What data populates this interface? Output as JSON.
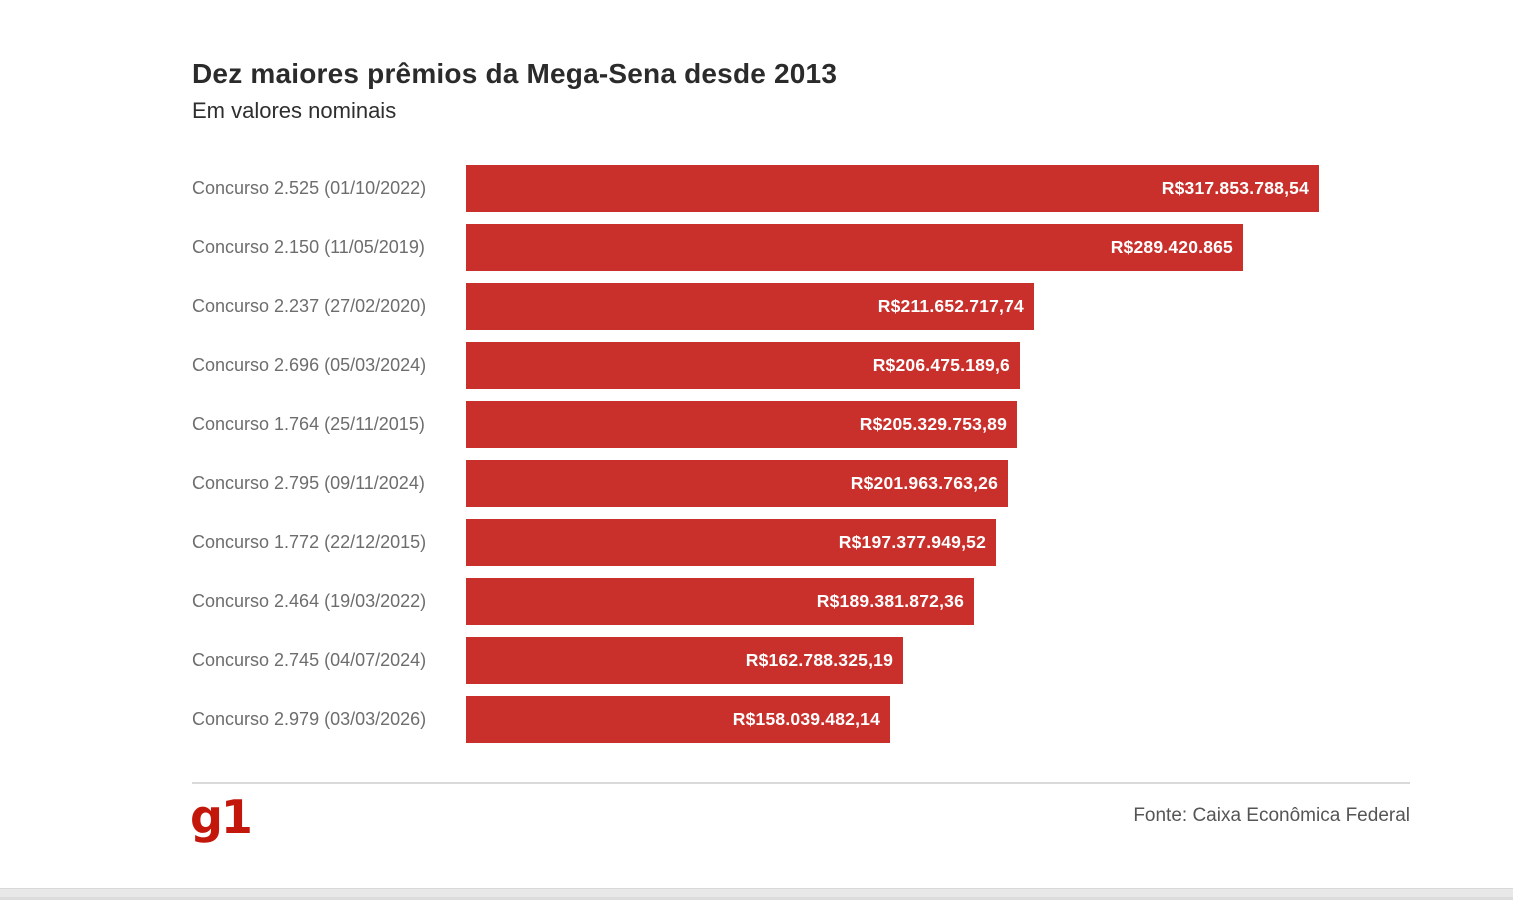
{
  "header": {
    "title": "Dez maiores prêmios da Mega-Sena desde 2013",
    "subtitle": "Em valores nominais"
  },
  "chart_data": {
    "type": "bar",
    "orientation": "horizontal",
    "title": "Dez maiores prêmios da Mega-Sena desde 2013",
    "subtitle": "Em valores nominais",
    "currency": "R$",
    "xlim": [
      0,
      317853788.54
    ],
    "grid": false,
    "legend": false,
    "bar_color": "#c9302c",
    "category_label_color": "#6d6d6d",
    "value_label_color": "#ffffff",
    "categories": [
      "Concurso 2.525 (01/10/2022)",
      "Concurso 2.150 (11/05/2019)",
      "Concurso 2.237 (27/02/2020)",
      "Concurso 2.696 (05/03/2024)",
      "Concurso 1.764 (25/11/2015)",
      "Concurso 2.795 (09/11/2024)",
      "Concurso 1.772 (22/12/2015)",
      "Concurso 2.464 (19/03/2022)",
      "Concurso 2.745 (04/07/2024)",
      "Concurso 2.979 (03/03/2026)"
    ],
    "values": [
      317853788.54,
      289420865,
      211652717.74,
      206475189.6,
      205329753.89,
      201963763.26,
      197377949.52,
      189381872.36,
      162788325.19,
      158039482.14
    ],
    "value_labels": [
      "R$317.853.788,54",
      "R$289.420.865",
      "R$211.652.717,74",
      "R$206.475.189,6",
      "R$205.329.753,89",
      "R$201.963.763,26",
      "R$197.377.949,52",
      "R$189.381.872,36",
      "R$162.788.325,19",
      "R$158.039.482,14"
    ]
  },
  "footer": {
    "logo_text": "g1",
    "logo_color": "#c4170c",
    "source": "Fonte: Caixa Econômica Federal"
  },
  "layout_colors": {
    "background": "#ffffff",
    "divider": "#d9d9d9",
    "bottom_strip": "#e8e8e8"
  }
}
